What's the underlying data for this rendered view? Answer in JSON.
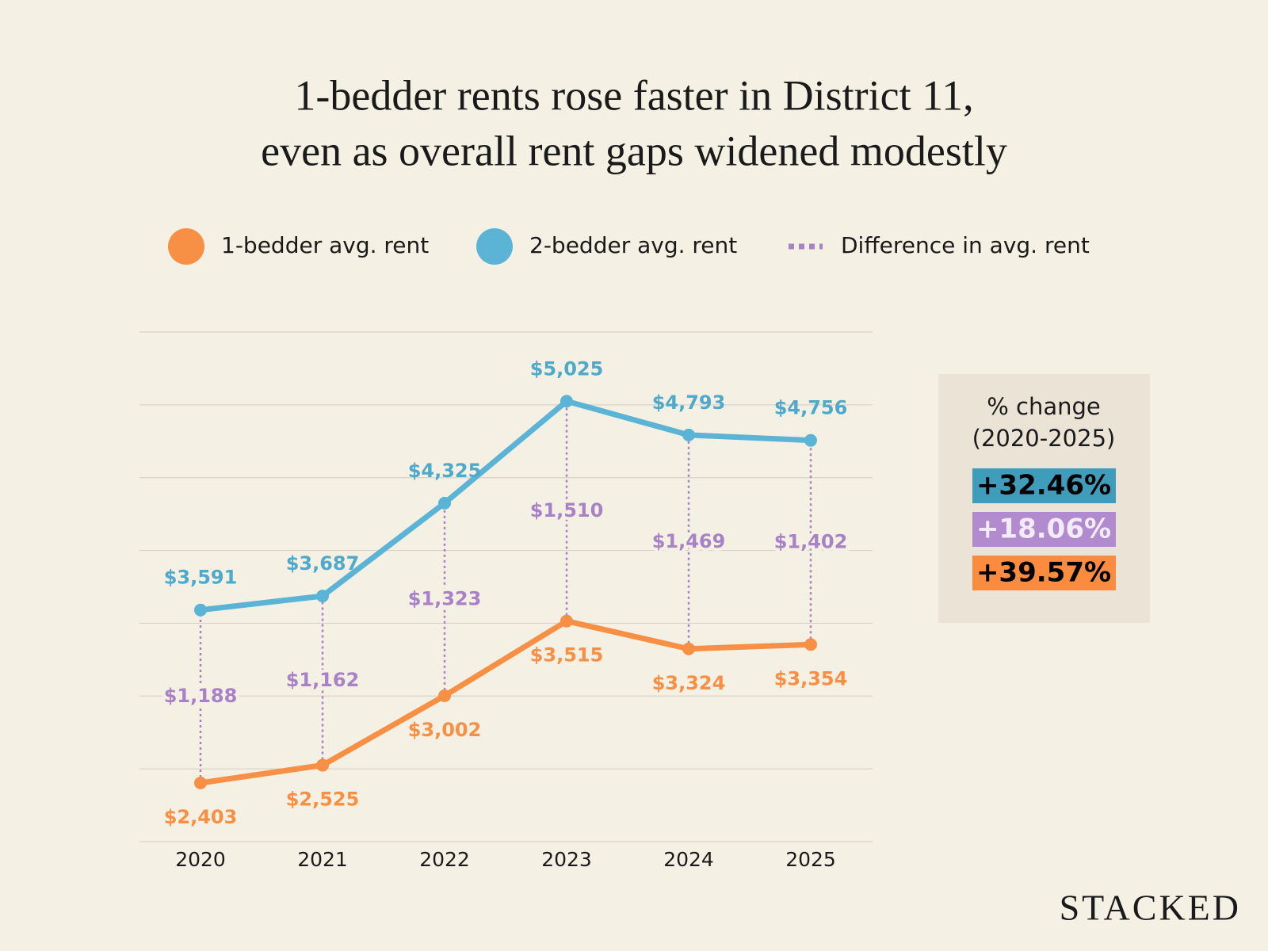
{
  "chart_data": {
    "type": "line",
    "title": [
      "1-bedder rents rose faster in District 11,",
      "even as overall rent gaps widened modestly"
    ],
    "categories": [
      "2020",
      "2021",
      "2022",
      "2023",
      "2024",
      "2025"
    ],
    "series": [
      {
        "name": "1-bedder avg. rent",
        "color": "#f78f45",
        "values": [
          2403,
          2525,
          3002,
          3515,
          3324,
          3354
        ],
        "value_labels": [
          "$2,403",
          "$2,525",
          "$3,002",
          "$3,515",
          "$3,324",
          "$3,354"
        ]
      },
      {
        "name": "2-bedder avg. rent",
        "color": "#5bb4d6",
        "values": [
          3591,
          3687,
          4325,
          5025,
          4793,
          4756
        ],
        "value_labels": [
          "$3,591",
          "$3,687",
          "$4,325",
          "$5,025",
          "$4,793",
          "$4,756"
        ]
      },
      {
        "name": "Difference in avg. rent",
        "color": "#a882c6",
        "style": "dotted",
        "values": [
          1188,
          1162,
          1323,
          1510,
          1469,
          1402
        ],
        "value_labels": [
          "$1,188",
          "$1,162",
          "$1,323",
          "$1,510",
          "$1,469",
          "$1,402"
        ]
      }
    ],
    "ylim": [
      2000,
      5500
    ],
    "yticks": [
      2000,
      2500,
      3000,
      3500,
      4000,
      4500,
      5000,
      5500
    ],
    "grid": true,
    "summary": {
      "title": [
        "% change",
        "(2020-2025)"
      ],
      "items": [
        {
          "label": "+32.46%",
          "color": "#3f9cbb",
          "text_color": "#000000"
        },
        {
          "label": "+18.06%",
          "color": "#b28bcf",
          "text_color": "#f3ecf8"
        },
        {
          "label": "+39.57%",
          "color": "#fb8c3f",
          "text_color": "#000000"
        }
      ]
    }
  },
  "brand": "STACKED"
}
